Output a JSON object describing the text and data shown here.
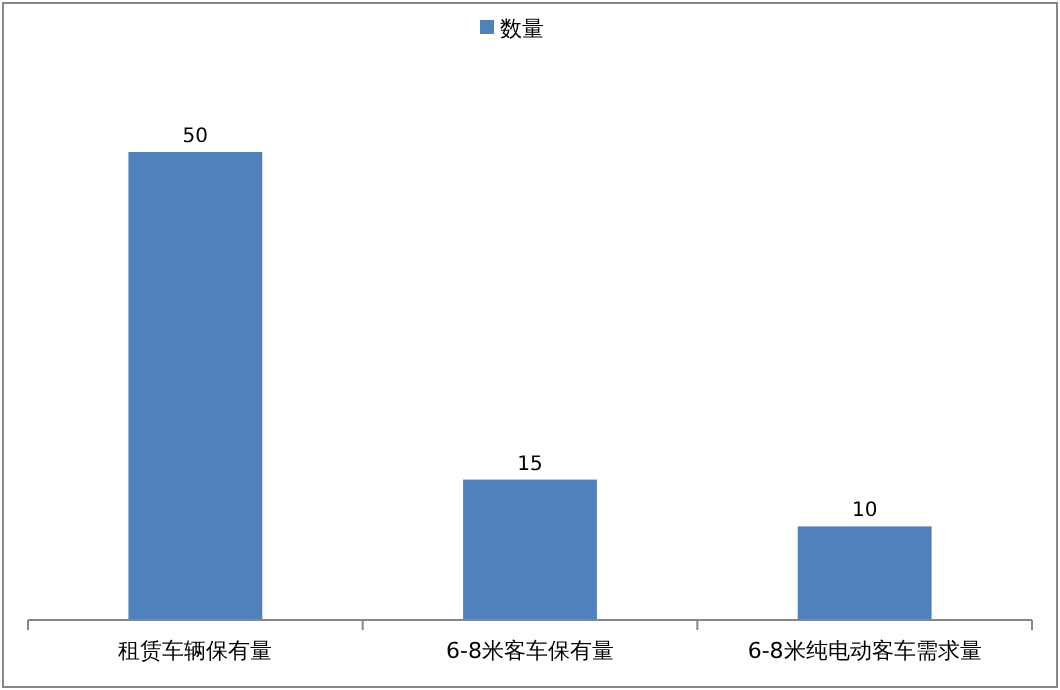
{
  "chart_data": {
    "type": "bar",
    "categories": [
      "租赁车辆保有量",
      "6-8米客车保有量",
      "6-8米纯电动客车需求量"
    ],
    "series": [
      {
        "name": "数量",
        "color": "#4f81bd",
        "values": [
          50,
          15,
          10
        ]
      }
    ],
    "data_labels": true,
    "legend": "top"
  }
}
